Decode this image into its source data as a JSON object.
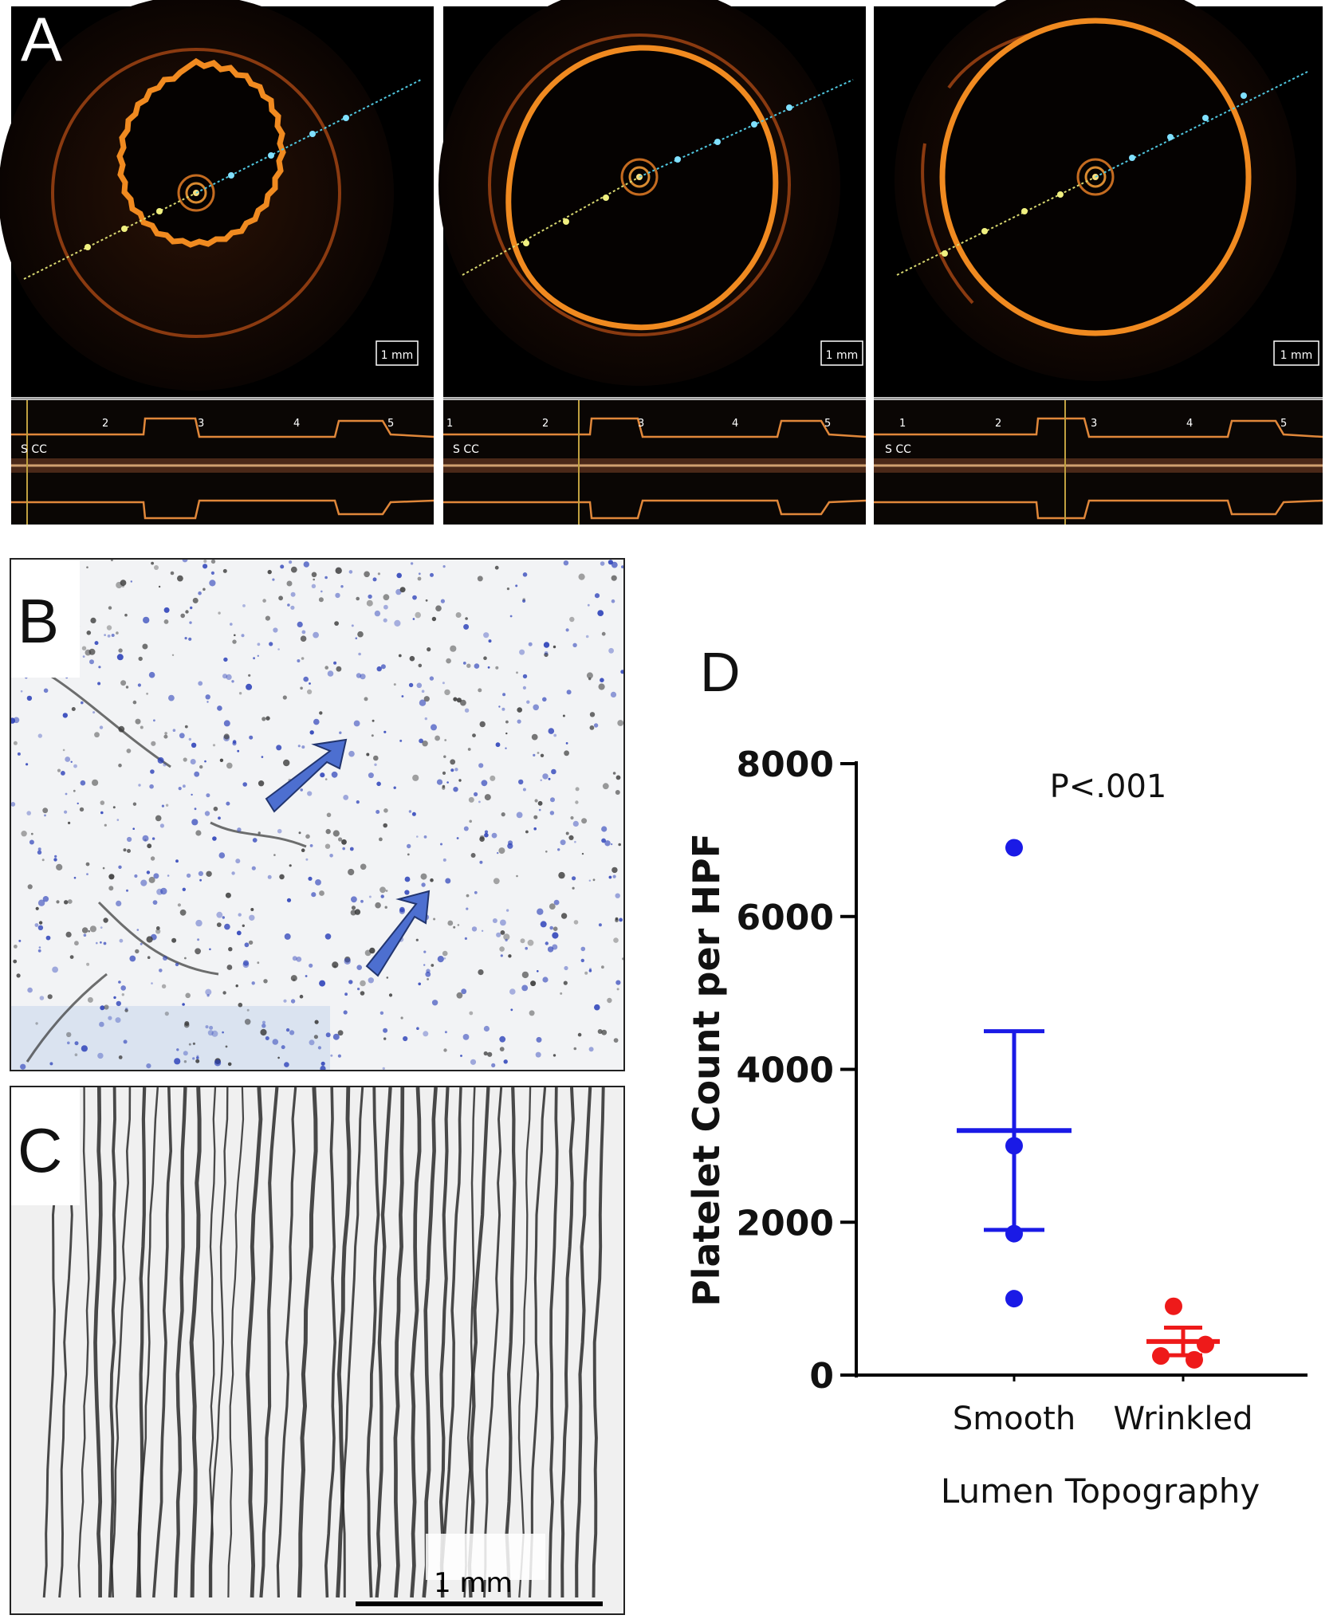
{
  "figure": {
    "panels": {
      "a": {
        "letter": "A",
        "frames": [
          {
            "scale_label": "1 mm",
            "tick_labels": [
              "2",
              "3",
              "4",
              "5"
            ],
            "side_label": "S CC"
          },
          {
            "scale_label": "1 mm",
            "tick_labels": [
              "1",
              "2",
              "3",
              "4",
              "5"
            ],
            "side_label": "S CC"
          },
          {
            "scale_label": "1 mm",
            "tick_labels": [
              "1",
              "2",
              "3",
              "4",
              "5"
            ],
            "side_label": "S CC"
          }
        ]
      },
      "b": {
        "letter": "B"
      },
      "c": {
        "letter": "C",
        "scale_label": "1 mm"
      },
      "d": {
        "letter": "D"
      }
    }
  },
  "chart_data": {
    "type": "scatter",
    "ylabel": "Platelet Count per HPF",
    "xlabel": "Lumen Topography",
    "categories": [
      "Smooth",
      "Wrinkled"
    ],
    "y_ticks": [
      "0",
      "2000",
      "4000",
      "6000",
      "8000"
    ],
    "ylim": [
      0,
      8000
    ],
    "annotation": "P<.001",
    "series": [
      {
        "category": "Smooth",
        "color": "#1a1ae6",
        "points": [
          6900,
          3000,
          1850,
          1000
        ],
        "mean": 3200,
        "sem_low": 1900,
        "sem_high": 4500
      },
      {
        "category": "Wrinkled",
        "color": "#ee1a1a",
        "points": [
          900,
          400,
          250,
          200
        ],
        "mean": 440,
        "sem_low": 260,
        "sem_high": 620
      }
    ],
    "grid": false
  }
}
